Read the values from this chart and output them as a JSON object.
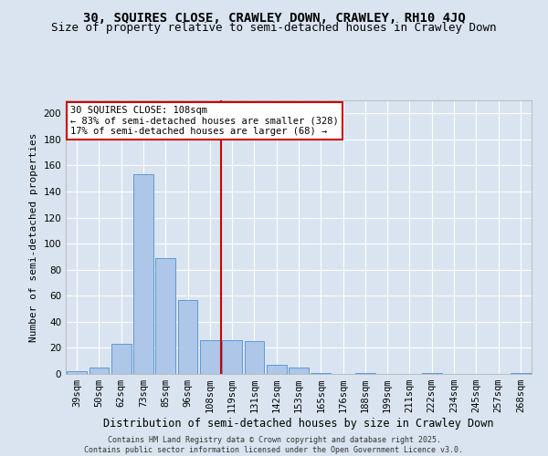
{
  "title1": "30, SQUIRES CLOSE, CRAWLEY DOWN, CRAWLEY, RH10 4JQ",
  "title2": "Size of property relative to semi-detached houses in Crawley Down",
  "xlabel": "Distribution of semi-detached houses by size in Crawley Down",
  "ylabel": "Number of semi-detached properties",
  "categories": [
    "39sqm",
    "50sqm",
    "62sqm",
    "73sqm",
    "85sqm",
    "96sqm",
    "108sqm",
    "119sqm",
    "131sqm",
    "142sqm",
    "153sqm",
    "165sqm",
    "176sqm",
    "188sqm",
    "199sqm",
    "211sqm",
    "222sqm",
    "234sqm",
    "245sqm",
    "257sqm",
    "268sqm"
  ],
  "values": [
    2,
    5,
    23,
    153,
    89,
    57,
    26,
    26,
    25,
    7,
    5,
    1,
    0,
    1,
    0,
    0,
    1,
    0,
    0,
    0,
    1
  ],
  "bar_color": "#aec6e8",
  "bar_edge_color": "#5b9bd5",
  "vline_index": 6,
  "vline_color": "#cc0000",
  "annotation_line1": "30 SQUIRES CLOSE: 108sqm",
  "annotation_line2": "← 83% of semi-detached houses are smaller (328)",
  "annotation_line3": "17% of semi-detached houses are larger (68) →",
  "annotation_box_color": "#cc0000",
  "ylim": [
    0,
    210
  ],
  "yticks": [
    0,
    20,
    40,
    60,
    80,
    100,
    120,
    140,
    160,
    180,
    200
  ],
  "footnote": "Contains HM Land Registry data © Crown copyright and database right 2025.\nContains public sector information licensed under the Open Government Licence v3.0.",
  "bg_color": "#d9e4f0",
  "plot_bg_color": "#d9e4f0",
  "title1_fontsize": 10,
  "title2_fontsize": 9,
  "xlabel_fontsize": 8.5,
  "ylabel_fontsize": 8,
  "tick_fontsize": 7.5,
  "annotation_fontsize": 7.5,
  "footnote_fontsize": 6
}
